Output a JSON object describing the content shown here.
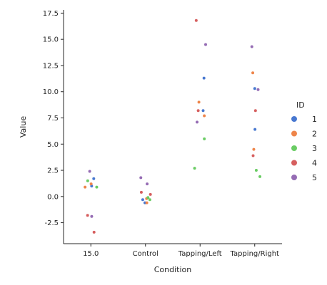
{
  "chart_data": {
    "type": "scatter",
    "title": "",
    "xlabel": "Condition",
    "ylabel": "Value",
    "categories": [
      "15.0",
      "Control",
      "Tapping/Left",
      "Tapping/Right"
    ],
    "ylim": [
      -4.5,
      17.8
    ],
    "yticks": [
      "-2.5",
      "0.0",
      "2.5",
      "5.0",
      "7.5",
      "10.0",
      "12.5",
      "15.0",
      "17.5"
    ],
    "legend": {
      "title": "ID",
      "placement": "right"
    },
    "series": [
      {
        "name": "1",
        "color": "#4878d0",
        "points": [
          {
            "category": "15.0",
            "y": 1.7
          },
          {
            "category": "15.0",
            "y": 1.0
          },
          {
            "category": "Control",
            "y": -0.6
          },
          {
            "category": "Control",
            "y": -0.3
          },
          {
            "category": "Tapping/Left",
            "y": 11.3
          },
          {
            "category": "Tapping/Left",
            "y": 8.2
          },
          {
            "category": "Tapping/Right",
            "y": 10.3
          },
          {
            "category": "Tapping/Right",
            "y": 6.4
          }
        ]
      },
      {
        "name": "2",
        "color": "#ee854a",
        "points": [
          {
            "category": "15.0",
            "y": 1.2
          },
          {
            "category": "15.0",
            "y": 0.9
          },
          {
            "category": "Control",
            "y": -0.2
          },
          {
            "category": "Control",
            "y": -0.6
          },
          {
            "category": "Tapping/Left",
            "y": 9.0
          },
          {
            "category": "Tapping/Left",
            "y": 7.7
          },
          {
            "category": "Tapping/Right",
            "y": 11.8
          },
          {
            "category": "Tapping/Right",
            "y": 4.5
          }
        ]
      },
      {
        "name": "3",
        "color": "#6acc64",
        "points": [
          {
            "category": "15.0",
            "y": 1.5
          },
          {
            "category": "15.0",
            "y": 0.9
          },
          {
            "category": "Control",
            "y": -0.1
          },
          {
            "category": "Control",
            "y": -0.3
          },
          {
            "category": "Tapping/Left",
            "y": 5.5
          },
          {
            "category": "Tapping/Left",
            "y": 2.7
          },
          {
            "category": "Tapping/Right",
            "y": 2.5
          },
          {
            "category": "Tapping/Right",
            "y": 1.9
          }
        ]
      },
      {
        "name": "4",
        "color": "#d65f5f",
        "points": [
          {
            "category": "15.0",
            "y": -1.8
          },
          {
            "category": "15.0",
            "y": -3.4
          },
          {
            "category": "Control",
            "y": 0.4
          },
          {
            "category": "Control",
            "y": 0.2
          },
          {
            "category": "Tapping/Left",
            "y": 16.8
          },
          {
            "category": "Tapping/Left",
            "y": 8.2
          },
          {
            "category": "Tapping/Right",
            "y": 8.2
          },
          {
            "category": "Tapping/Right",
            "y": 3.9
          }
        ]
      },
      {
        "name": "5",
        "color": "#956cb4",
        "points": [
          {
            "category": "15.0",
            "y": 2.4
          },
          {
            "category": "15.0",
            "y": -1.9
          },
          {
            "category": "Control",
            "y": 1.8
          },
          {
            "category": "Control",
            "y": 1.2
          },
          {
            "category": "Tapping/Left",
            "y": 14.5
          },
          {
            "category": "Tapping/Left",
            "y": 7.1
          },
          {
            "category": "Tapping/Right",
            "y": 14.3
          },
          {
            "category": "Tapping/Right",
            "y": 10.2
          }
        ]
      }
    ]
  }
}
